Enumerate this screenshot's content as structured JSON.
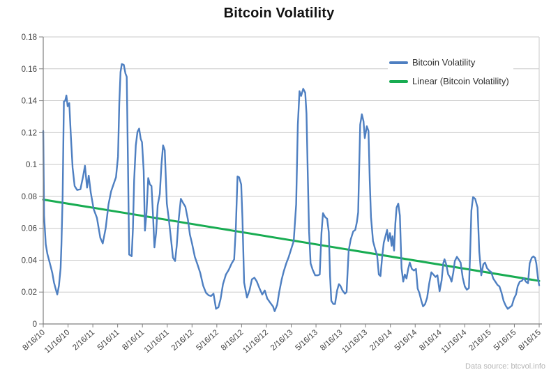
{
  "chart": {
    "title": "Bitcoin Volatility",
    "source_note": "Data source: btcvol.info",
    "legend": [
      {
        "label": "Bitcoin Volatility",
        "color": "#4e7fc1"
      },
      {
        "label": "Linear (Bitcoin Volatility)",
        "color": "#18ac52"
      }
    ],
    "colors": {
      "series_blue": "#4e7fc1",
      "trend_green": "#18ac52",
      "gridline": "#c9c9c9",
      "axis": "#7f7f7f",
      "tick_label": "#3f3f3f"
    }
  },
  "chart_data": {
    "type": "line",
    "title": "Bitcoin Volatility",
    "xlabel": "",
    "ylabel": "",
    "ylim": [
      0,
      0.18
    ],
    "y_tick_step": 0.02,
    "y_tick_labels_top_to_bottom": [
      "0.18",
      "0.16",
      "0.14",
      "0.12",
      "0.1",
      "0.08",
      "0.06",
      "0.04",
      "0.02",
      "0"
    ],
    "x_tick_labels": [
      "8/16/10",
      "11/16/10",
      "2/16/11",
      "5/16/11",
      "8/16/11",
      "11/16/11",
      "2/16/12",
      "5/16/12",
      "8/16/12",
      "11/16/12",
      "2/16/13",
      "5/16/13",
      "8/16/13",
      "11/16/13",
      "2/16/14",
      "5/16/14",
      "8/16/14",
      "11/16/14",
      "2/16/15",
      "5/16/15",
      "8/16/15"
    ],
    "x_unit": "months since 8/16/2010 (0 to 60, ticks every 3 months)",
    "grid": "horizontal",
    "legend_position": "top-right-inside",
    "series": [
      {
        "name": "Bitcoin Volatility",
        "color": "#4e7fc1",
        "points": [
          [
            0,
            0.121
          ],
          [
            0.1,
            0.068
          ],
          [
            0.3,
            0.05
          ],
          [
            0.5,
            0.044
          ],
          [
            0.7,
            0.04
          ],
          [
            0.9,
            0.036
          ],
          [
            1.1,
            0.032
          ],
          [
            1.3,
            0.026
          ],
          [
            1.5,
            0.022
          ],
          [
            1.7,
            0.0185
          ],
          [
            1.9,
            0.024
          ],
          [
            2.1,
            0.035
          ],
          [
            2.2,
            0.05
          ],
          [
            2.35,
            0.08
          ],
          [
            2.5,
            0.1395
          ],
          [
            2.65,
            0.14
          ],
          [
            2.8,
            0.1433
          ],
          [
            2.95,
            0.1365
          ],
          [
            3.15,
            0.1385
          ],
          [
            3.35,
            0.117
          ],
          [
            3.55,
            0.098
          ],
          [
            3.8,
            0.0865
          ],
          [
            4.1,
            0.084
          ],
          [
            4.5,
            0.0845
          ],
          [
            4.8,
            0.092
          ],
          [
            5.05,
            0.0992
          ],
          [
            5.3,
            0.0855
          ],
          [
            5.5,
            0.093
          ],
          [
            5.75,
            0.0825
          ],
          [
            6.1,
            0.072
          ],
          [
            6.5,
            0.0665
          ],
          [
            6.9,
            0.054
          ],
          [
            7.2,
            0.0505
          ],
          [
            7.55,
            0.06
          ],
          [
            7.9,
            0.075
          ],
          [
            8.2,
            0.083
          ],
          [
            8.5,
            0.0875
          ],
          [
            8.8,
            0.092
          ],
          [
            9.05,
            0.105
          ],
          [
            9.2,
            0.138
          ],
          [
            9.35,
            0.158
          ],
          [
            9.5,
            0.163
          ],
          [
            9.75,
            0.1625
          ],
          [
            9.95,
            0.157
          ],
          [
            10.1,
            0.155
          ],
          [
            10.25,
            0.1
          ],
          [
            10.4,
            0.0435
          ],
          [
            10.7,
            0.0425
          ],
          [
            10.85,
            0.06
          ],
          [
            11,
            0.09
          ],
          [
            11.2,
            0.112
          ],
          [
            11.4,
            0.1205
          ],
          [
            11.6,
            0.1225
          ],
          [
            11.8,
            0.116
          ],
          [
            11.95,
            0.114
          ],
          [
            12.15,
            0.096
          ],
          [
            12.3,
            0.0585
          ],
          [
            12.5,
            0.07
          ],
          [
            12.7,
            0.0915
          ],
          [
            12.9,
            0.0875
          ],
          [
            13.1,
            0.0865
          ],
          [
            13.3,
            0.066
          ],
          [
            13.45,
            0.048
          ],
          [
            13.65,
            0.057
          ],
          [
            13.85,
            0.0745
          ],
          [
            14.1,
            0.0815
          ],
          [
            14.3,
            0.1
          ],
          [
            14.5,
            0.112
          ],
          [
            14.7,
            0.109
          ],
          [
            14.95,
            0.0755
          ],
          [
            15.2,
            0.0655
          ],
          [
            15.45,
            0.0535
          ],
          [
            15.7,
            0.0415
          ],
          [
            15.95,
            0.0395
          ],
          [
            16.15,
            0.049
          ],
          [
            16.35,
            0.0635
          ],
          [
            16.65,
            0.0785
          ],
          [
            16.9,
            0.076
          ],
          [
            17.2,
            0.0735
          ],
          [
            17.5,
            0.0655
          ],
          [
            17.75,
            0.056
          ],
          [
            18,
            0.0505
          ],
          [
            18.35,
            0.042
          ],
          [
            18.65,
            0.0375
          ],
          [
            19,
            0.032
          ],
          [
            19.35,
            0.024
          ],
          [
            19.7,
            0.0195
          ],
          [
            20,
            0.018
          ],
          [
            20.3,
            0.0175
          ],
          [
            20.6,
            0.019
          ],
          [
            20.9,
            0.0095
          ],
          [
            21.2,
            0.0105
          ],
          [
            21.45,
            0.0155
          ],
          [
            21.75,
            0.025
          ],
          [
            22.1,
            0.031
          ],
          [
            22.45,
            0.034
          ],
          [
            22.8,
            0.038
          ],
          [
            23.1,
            0.0405
          ],
          [
            23.3,
            0.06
          ],
          [
            23.5,
            0.0925
          ],
          [
            23.7,
            0.092
          ],
          [
            23.95,
            0.0875
          ],
          [
            24.1,
            0.066
          ],
          [
            24.3,
            0.026
          ],
          [
            24.65,
            0.0165
          ],
          [
            24.95,
            0.021
          ],
          [
            25.25,
            0.028
          ],
          [
            25.55,
            0.029
          ],
          [
            25.85,
            0.0265
          ],
          [
            26.15,
            0.0225
          ],
          [
            26.5,
            0.0185
          ],
          [
            26.8,
            0.021
          ],
          [
            27.1,
            0.016
          ],
          [
            27.5,
            0.013
          ],
          [
            27.8,
            0.011
          ],
          [
            28,
            0.008
          ],
          [
            28.3,
            0.012
          ],
          [
            28.55,
            0.02
          ],
          [
            28.85,
            0.028
          ],
          [
            29.1,
            0.033
          ],
          [
            29.4,
            0.038
          ],
          [
            29.7,
            0.042
          ],
          [
            30,
            0.047
          ],
          [
            30.3,
            0.052
          ],
          [
            30.6,
            0.075
          ],
          [
            30.8,
            0.125
          ],
          [
            31,
            0.146
          ],
          [
            31.2,
            0.143
          ],
          [
            31.45,
            0.1475
          ],
          [
            31.7,
            0.145
          ],
          [
            31.85,
            0.132
          ],
          [
            32,
            0.095
          ],
          [
            32.16,
            0.058
          ],
          [
            32.35,
            0.038
          ],
          [
            32.6,
            0.034
          ],
          [
            32.9,
            0.0305
          ],
          [
            33.2,
            0.0305
          ],
          [
            33.45,
            0.031
          ],
          [
            33.66,
            0.057
          ],
          [
            33.85,
            0.0695
          ],
          [
            34.1,
            0.067
          ],
          [
            34.35,
            0.066
          ],
          [
            34.55,
            0.0575
          ],
          [
            34.7,
            0.03
          ],
          [
            34.85,
            0.0145
          ],
          [
            35.1,
            0.0125
          ],
          [
            35.3,
            0.0125
          ],
          [
            35.55,
            0.021
          ],
          [
            35.77,
            0.025
          ],
          [
            35.95,
            0.024
          ],
          [
            36.2,
            0.021
          ],
          [
            36.5,
            0.019
          ],
          [
            36.7,
            0.02
          ],
          [
            36.95,
            0.046
          ],
          [
            37.2,
            0.053
          ],
          [
            37.5,
            0.058
          ],
          [
            37.75,
            0.059
          ],
          [
            37.95,
            0.064
          ],
          [
            38.1,
            0.07
          ],
          [
            38.2,
            0.093
          ],
          [
            38.35,
            0.125
          ],
          [
            38.55,
            0.1315
          ],
          [
            38.75,
            0.127
          ],
          [
            38.9,
            0.1165
          ],
          [
            39.15,
            0.124
          ],
          [
            39.35,
            0.121
          ],
          [
            39.5,
            0.09
          ],
          [
            39.65,
            0.067
          ],
          [
            39.9,
            0.052
          ],
          [
            40.15,
            0.047
          ],
          [
            40.4,
            0.043
          ],
          [
            40.6,
            0.031
          ],
          [
            40.8,
            0.03
          ],
          [
            41,
            0.042
          ],
          [
            41.2,
            0.051
          ],
          [
            41.4,
            0.055
          ],
          [
            41.6,
            0.059
          ],
          [
            41.75,
            0.052
          ],
          [
            41.95,
            0.057
          ],
          [
            42.15,
            0.049
          ],
          [
            42.25,
            0.055
          ],
          [
            42.45,
            0.046
          ],
          [
            42.6,
            0.063
          ],
          [
            42.75,
            0.073
          ],
          [
            42.95,
            0.0755
          ],
          [
            43.15,
            0.068
          ],
          [
            43.35,
            0.035
          ],
          [
            43.55,
            0.0265
          ],
          [
            43.75,
            0.031
          ],
          [
            43.95,
            0.0285
          ],
          [
            44.15,
            0.0345
          ],
          [
            44.35,
            0.0385
          ],
          [
            44.6,
            0.0345
          ],
          [
            44.85,
            0.0335
          ],
          [
            45.1,
            0.0345
          ],
          [
            45.3,
            0.0222
          ],
          [
            45.5,
            0.0195
          ],
          [
            45.75,
            0.0145
          ],
          [
            45.95,
            0.011
          ],
          [
            46.2,
            0.0125
          ],
          [
            46.45,
            0.0165
          ],
          [
            46.7,
            0.0255
          ],
          [
            46.95,
            0.0324
          ],
          [
            47.2,
            0.031
          ],
          [
            47.45,
            0.0295
          ],
          [
            47.7,
            0.0305
          ],
          [
            47.95,
            0.0205
          ],
          [
            48.2,
            0.0275
          ],
          [
            48.4,
            0.038
          ],
          [
            48.55,
            0.0406
          ],
          [
            48.75,
            0.0375
          ],
          [
            49,
            0.031
          ],
          [
            49.2,
            0.0295
          ],
          [
            49.4,
            0.0265
          ],
          [
            49.6,
            0.032
          ],
          [
            49.8,
            0.0395
          ],
          [
            50.05,
            0.0421
          ],
          [
            50.25,
            0.0405
          ],
          [
            50.5,
            0.0385
          ],
          [
            50.75,
            0.029
          ],
          [
            51,
            0.0235
          ],
          [
            51.25,
            0.0215
          ],
          [
            51.5,
            0.0225
          ],
          [
            51.65,
            0.045
          ],
          [
            51.8,
            0.071
          ],
          [
            52,
            0.0795
          ],
          [
            52.25,
            0.0785
          ],
          [
            52.55,
            0.073
          ],
          [
            52.75,
            0.0455
          ],
          [
            53,
            0.0305
          ],
          [
            53.25,
            0.0375
          ],
          [
            53.45,
            0.0385
          ],
          [
            53.7,
            0.035
          ],
          [
            53.95,
            0.0335
          ],
          [
            54.2,
            0.0325
          ],
          [
            54.45,
            0.0285
          ],
          [
            54.7,
            0.0265
          ],
          [
            54.95,
            0.0245
          ],
          [
            55.2,
            0.0235
          ],
          [
            55.45,
            0.0195
          ],
          [
            55.7,
            0.0145
          ],
          [
            55.95,
            0.0115
          ],
          [
            56.2,
            0.0095
          ],
          [
            56.45,
            0.0105
          ],
          [
            56.7,
            0.0115
          ],
          [
            56.95,
            0.016
          ],
          [
            57.2,
            0.0185
          ],
          [
            57.4,
            0.0237
          ],
          [
            57.65,
            0.0265
          ],
          [
            57.9,
            0.027
          ],
          [
            58.15,
            0.0287
          ],
          [
            58.4,
            0.0265
          ],
          [
            58.65,
            0.0255
          ],
          [
            58.85,
            0.038
          ],
          [
            59.1,
            0.0415
          ],
          [
            59.3,
            0.0424
          ],
          [
            59.5,
            0.0415
          ],
          [
            59.65,
            0.038
          ],
          [
            59.85,
            0.029
          ],
          [
            60,
            0.0242
          ]
        ]
      }
    ],
    "trendline": {
      "name": "Linear (Bitcoin Volatility)",
      "color": "#18ac52",
      "start": [
        0,
        0.078
      ],
      "end": [
        60,
        0.027
      ]
    }
  }
}
